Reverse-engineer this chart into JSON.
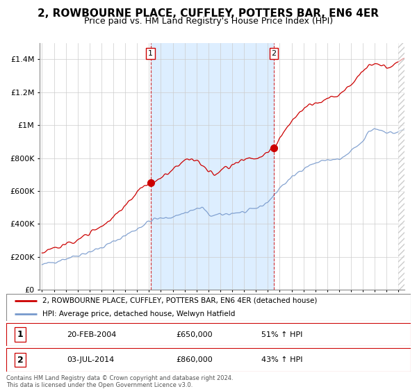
{
  "title": "2, ROWBOURNE PLACE, CUFFLEY, POTTERS BAR, EN6 4ER",
  "subtitle": "Price paid vs. HM Land Registry's House Price Index (HPI)",
  "legend_line1": "2, ROWBOURNE PLACE, CUFFLEY, POTTERS BAR, EN6 4ER (detached house)",
  "legend_line2": "HPI: Average price, detached house, Welwyn Hatfield",
  "table_row1": [
    "1",
    "20-FEB-2004",
    "£650,000",
    "51% ↑ HPI"
  ],
  "table_row2": [
    "2",
    "03-JUL-2014",
    "£860,000",
    "43% ↑ HPI"
  ],
  "footer": "Contains HM Land Registry data © Crown copyright and database right 2024.\nThis data is licensed under the Open Government Licence v3.0.",
  "sale1_year": 2004.13,
  "sale1_price": 650000,
  "sale2_year": 2014.5,
  "sale2_price": 860000,
  "red_color": "#cc0000",
  "blue_color": "#7799cc",
  "shade_color": "#ddeeff",
  "vline_color": "#cc0000",
  "ylim": [
    0,
    1500000
  ],
  "yticks": [
    0,
    200000,
    400000,
    600000,
    800000,
    1000000,
    1200000,
    1400000
  ],
  "ytick_labels": [
    "£0",
    "£200K",
    "£400K",
    "£600K",
    "£800K",
    "£1M",
    "£1.2M",
    "£1.4M"
  ],
  "xlim_start": 1995,
  "xlim_end": 2025.5,
  "background_color": "#ffffff",
  "grid_color": "#cccccc",
  "title_fontsize": 11,
  "subtitle_fontsize": 9
}
